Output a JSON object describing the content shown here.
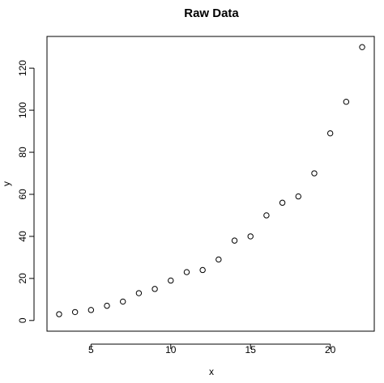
{
  "chart_data": {
    "type": "scatter",
    "title": "Raw Data",
    "xlabel": "x",
    "ylabel": "y",
    "xlim": [
      2.24,
      22.76
    ],
    "ylim": [
      -5.08,
      135.08
    ],
    "x_ticks": [
      5,
      10,
      15,
      20
    ],
    "y_ticks": [
      0,
      20,
      40,
      60,
      80,
      100,
      120
    ],
    "grid": false,
    "marker": "open-circle",
    "colors": {
      "marker": "#000000",
      "axes": "#000000",
      "background": "#ffffff"
    },
    "points": [
      {
        "x": 3,
        "y": 3
      },
      {
        "x": 4,
        "y": 4
      },
      {
        "x": 5,
        "y": 5
      },
      {
        "x": 6,
        "y": 7
      },
      {
        "x": 7,
        "y": 9
      },
      {
        "x": 8,
        "y": 13
      },
      {
        "x": 9,
        "y": 15
      },
      {
        "x": 10,
        "y": 19
      },
      {
        "x": 11,
        "y": 23
      },
      {
        "x": 12,
        "y": 24
      },
      {
        "x": 13,
        "y": 29
      },
      {
        "x": 14,
        "y": 38
      },
      {
        "x": 15,
        "y": 40
      },
      {
        "x": 16,
        "y": 50
      },
      {
        "x": 17,
        "y": 56
      },
      {
        "x": 18,
        "y": 59
      },
      {
        "x": 19,
        "y": 70
      },
      {
        "x": 20,
        "y": 89
      },
      {
        "x": 21,
        "y": 104
      },
      {
        "x": 22,
        "y": 130
      }
    ]
  }
}
